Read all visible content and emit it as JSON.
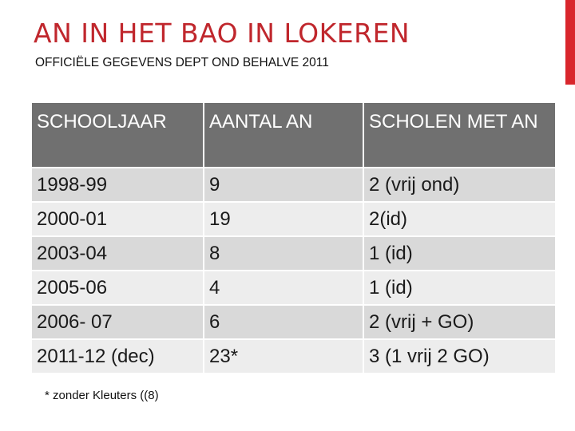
{
  "slide": {
    "title": "AN IN HET BAO IN LOKEREN",
    "subtitle": "OFFICIËLE GEGEVENS DEPT OND BEHALVE 2011",
    "accent_color": "#d9262c",
    "title_color": "#c0272d"
  },
  "table": {
    "headers": [
      "SCHOOLJAAR",
      "AANTAL  AN",
      "SCHOLEN MET AN"
    ],
    "rows": [
      [
        "1998-99",
        "9",
        "2 (vrij ond)"
      ],
      [
        "2000-01",
        "19",
        "2(id)"
      ],
      [
        "2003-04",
        "8",
        "1 (id)"
      ],
      [
        "2005-06",
        "4",
        "1 (id)"
      ],
      [
        "2006- 07",
        "6",
        "2 (vrij + GO)"
      ],
      [
        "2011-12 (dec)",
        "23*",
        "3 (1 vrij 2 GO)"
      ]
    ],
    "header_bg": "#707070",
    "row_bg_even": "#d9d9d9",
    "row_bg_odd": "#ededed"
  },
  "footnote": "* zonder Kleuters ((8)"
}
